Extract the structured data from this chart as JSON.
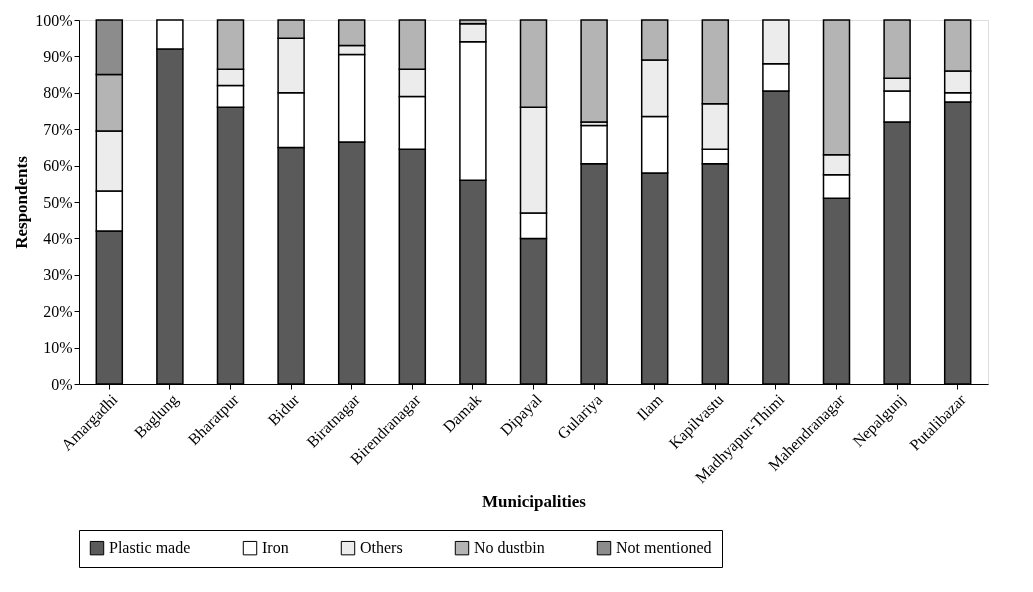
{
  "chart_data": {
    "type": "bar",
    "stacked": true,
    "xlabel": "Municipalities",
    "ylabel": "Respondents",
    "categories": [
      "Amargadhi",
      "Baglung",
      "Bharatpur",
      "Bidur",
      "Biratnagar",
      "Birendranagar",
      "Damak",
      "Dipayal",
      "Gulariya",
      "Ilam",
      "Kapilvastu",
      "Madhyapur-Thimi",
      "Mahendranagar",
      "Nepalgunj",
      "Putalibazar"
    ],
    "series": [
      {
        "name": "Plastic made",
        "color": "#5a5a5a",
        "values": [
          42,
          92,
          76,
          65,
          66.5,
          64.5,
          56,
          40,
          60.5,
          58,
          60.5,
          80.5,
          51,
          72,
          77.5
        ]
      },
      {
        "name": "Iron",
        "color": "#ffffff",
        "values": [
          11,
          8,
          6,
          15,
          24,
          14.5,
          38,
          7,
          10.5,
          15.5,
          4,
          7.5,
          6.5,
          8.5,
          2.5
        ]
      },
      {
        "name": "Others",
        "color": "#ececec",
        "values": [
          16.5,
          0,
          4.5,
          15,
          2.5,
          7.5,
          5,
          29,
          1,
          15.5,
          12.5,
          12,
          5.5,
          3.5,
          6
        ]
      },
      {
        "name": "No dustbin",
        "color": "#b4b4b4",
        "values": [
          15.5,
          0,
          13.5,
          5,
          7,
          13.5,
          1,
          24,
          28,
          11,
          23,
          0,
          37,
          16,
          14
        ]
      },
      {
        "name": "Not mentioned",
        "color": "#8c8c8c",
        "values": [
          15,
          0,
          0,
          0,
          0,
          0,
          0,
          0,
          0,
          0,
          0,
          0,
          0,
          0,
          0
        ]
      }
    ],
    "ylim": [
      0,
      100
    ],
    "yticks": [
      {
        "value": 0,
        "label": "0%"
      },
      {
        "value": 10,
        "label": "10%"
      },
      {
        "value": 20,
        "label": "20%"
      },
      {
        "value": 30,
        "label": "30%"
      },
      {
        "value": 40,
        "label": "40%"
      },
      {
        "value": 50,
        "label": "50%"
      },
      {
        "value": 60,
        "label": "60%"
      },
      {
        "value": 70,
        "label": "70%"
      },
      {
        "value": 80,
        "label": "80%"
      },
      {
        "value": 90,
        "label": "90%"
      },
      {
        "value": 100,
        "label": "100%"
      }
    ],
    "grid": false,
    "legend": "bottom"
  }
}
